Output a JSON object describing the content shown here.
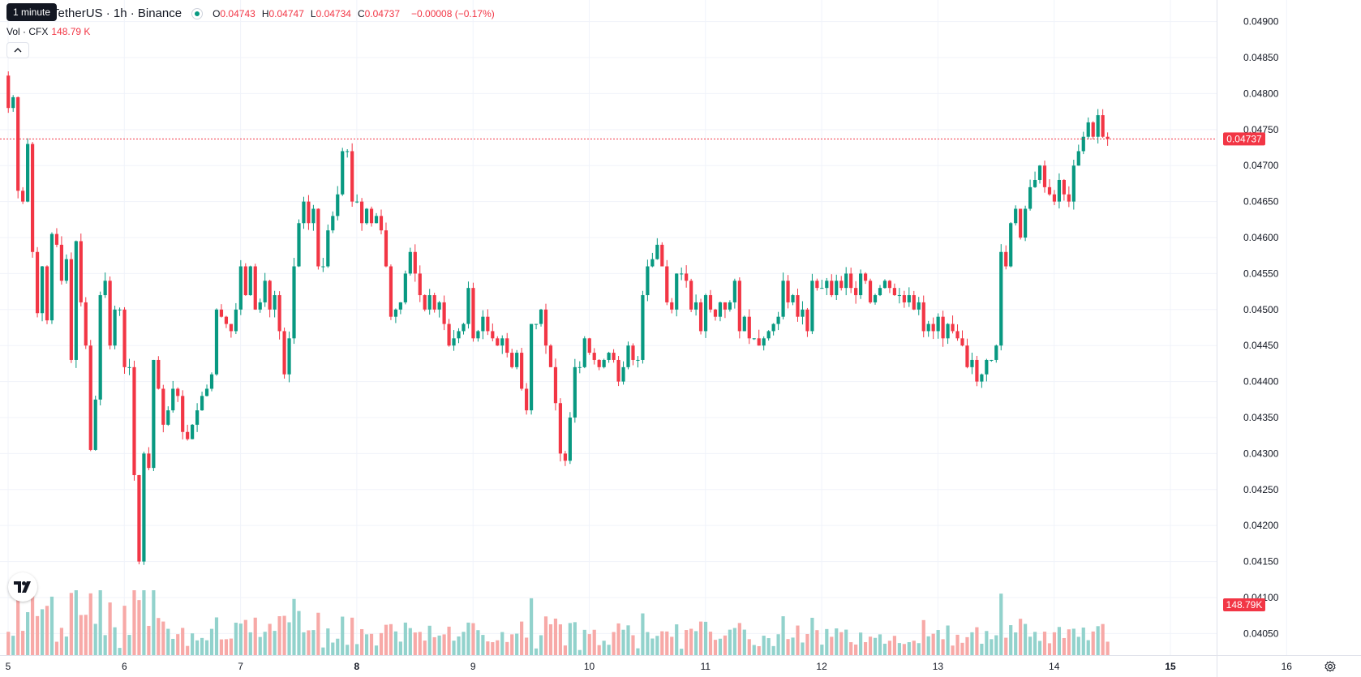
{
  "legend": {
    "tooltip": "1 minute",
    "title": "TetherUS · 1h · Binance",
    "open_label": "O",
    "open": "0.04743",
    "high_label": "H",
    "high": "0.04747",
    "low_label": "L",
    "low": "0.04734",
    "close_label": "C",
    "close": "0.04737",
    "change": "−0.00008 (−0.17%)",
    "vol_label": "Vol · CFX",
    "vol_value": "148.79 K"
  },
  "colors": {
    "up": "#089981",
    "down": "#f23645",
    "up_vol": "#92d2cc",
    "down_vol": "#f7a9a7",
    "grid": "#f0f3fa",
    "axis_text": "#131722"
  },
  "icons": {
    "collapse": "chevron-up-icon",
    "logo": "tradingview-logo-icon",
    "settings": "gear-icon"
  },
  "chart_data": {
    "type": "candlestick",
    "symbol": "TetherUS · 1h · Binance",
    "interval": "1h",
    "x_ticks": [
      "5",
      "6",
      "7",
      "8",
      "9",
      "10",
      "11",
      "12",
      "13",
      "14",
      "15",
      "16"
    ],
    "x_ticks_bold": [
      "8",
      "15"
    ],
    "y_ticks": [
      "0.04900",
      "0.04850",
      "0.04800",
      "0.04750",
      "0.04700",
      "0.04650",
      "0.04600",
      "0.04550",
      "0.04500",
      "0.04450",
      "0.04400",
      "0.04350",
      "0.04300",
      "0.04250",
      "0.04200",
      "0.04150",
      "0.04100",
      "0.04050"
    ],
    "ylim": [
      0.0402,
      0.0493
    ],
    "last_price": "0.04737",
    "last_volume": "148.79K",
    "candles_day_fraction": "24 candles per day, first candle ≈ day 4.96",
    "close_path": [
      [
        0,
        0.04825
      ],
      [
        1,
        0.0478
      ],
      [
        2,
        0.04795
      ],
      [
        3,
        0.04665
      ],
      [
        4,
        0.0465
      ],
      [
        5,
        0.0473
      ],
      [
        6,
        0.0458
      ],
      [
        7,
        0.04495
      ],
      [
        8,
        0.0456
      ],
      [
        9,
        0.04485
      ],
      [
        10,
        0.04605
      ],
      [
        11,
        0.0459
      ],
      [
        12,
        0.0454
      ],
      [
        13,
        0.0457
      ],
      [
        14,
        0.0443
      ],
      [
        15,
        0.04595
      ],
      [
        16,
        0.0451
      ],
      [
        17,
        0.0445
      ],
      [
        18,
        0.04305
      ],
      [
        19,
        0.04375
      ],
      [
        20,
        0.0452
      ],
      [
        21,
        0.0454
      ],
      [
        22,
        0.0445
      ],
      [
        23,
        0.045
      ],
      [
        24,
        0.045
      ],
      [
        25,
        0.0442
      ],
      [
        26,
        0.0442
      ],
      [
        27,
        0.0427
      ],
      [
        28,
        0.0415
      ],
      [
        29,
        0.043
      ],
      [
        30,
        0.0428
      ],
      [
        31,
        0.0443
      ],
      [
        32,
        0.0439
      ],
      [
        33,
        0.0434
      ],
      [
        34,
        0.0436
      ],
      [
        35,
        0.0439
      ],
      [
        36,
        0.0438
      ],
      [
        37,
        0.0433
      ],
      [
        38,
        0.0432
      ],
      [
        39,
        0.0434
      ],
      [
        40,
        0.0436
      ],
      [
        41,
        0.0438
      ],
      [
        42,
        0.0439
      ],
      [
        43,
        0.0441
      ],
      [
        44,
        0.045
      ],
      [
        45,
        0.0449
      ],
      [
        46,
        0.0448
      ],
      [
        47,
        0.0447
      ],
      [
        48,
        0.045
      ],
      [
        49,
        0.0456
      ],
      [
        50,
        0.0452
      ],
      [
        51,
        0.0456
      ],
      [
        52,
        0.045
      ],
      [
        53,
        0.0451
      ],
      [
        54,
        0.0454
      ],
      [
        55,
        0.045
      ],
      [
        56,
        0.0452
      ],
      [
        57,
        0.0447
      ],
      [
        58,
        0.0441
      ],
      [
        59,
        0.0446
      ],
      [
        60,
        0.0456
      ],
      [
        61,
        0.0462
      ],
      [
        62,
        0.0465
      ],
      [
        63,
        0.0462
      ],
      [
        64,
        0.0464
      ],
      [
        65,
        0.0456
      ],
      [
        66,
        0.0456
      ],
      [
        67,
        0.0461
      ],
      [
        68,
        0.0463
      ],
      [
        69,
        0.0466
      ],
      [
        70,
        0.0472
      ],
      [
        71,
        0.0472
      ],
      [
        72,
        0.0465
      ],
      [
        73,
        0.0465
      ],
      [
        74,
        0.0462
      ],
      [
        75,
        0.0464
      ],
      [
        76,
        0.0462
      ],
      [
        77,
        0.0463
      ],
      [
        78,
        0.0461
      ],
      [
        79,
        0.0456
      ],
      [
        80,
        0.0449
      ],
      [
        81,
        0.045
      ],
      [
        82,
        0.0451
      ],
      [
        83,
        0.0455
      ],
      [
        84,
        0.0458
      ],
      [
        85,
        0.0455
      ],
      [
        86,
        0.0452
      ],
      [
        87,
        0.045
      ],
      [
        88,
        0.0452
      ],
      [
        89,
        0.045
      ],
      [
        90,
        0.0451
      ],
      [
        91,
        0.0448
      ],
      [
        92,
        0.0445
      ],
      [
        93,
        0.0446
      ],
      [
        94,
        0.0447
      ],
      [
        95,
        0.0448
      ],
      [
        96,
        0.0453
      ],
      [
        97,
        0.0446
      ],
      [
        98,
        0.0447
      ],
      [
        99,
        0.0449
      ],
      [
        100,
        0.0447
      ],
      [
        101,
        0.0446
      ],
      [
        102,
        0.0445
      ],
      [
        103,
        0.0446
      ],
      [
        104,
        0.0444
      ],
      [
        105,
        0.0442
      ],
      [
        106,
        0.0444
      ],
      [
        107,
        0.0439
      ],
      [
        108,
        0.0436
      ],
      [
        109,
        0.0448
      ],
      [
        110,
        0.0448
      ],
      [
        111,
        0.045
      ],
      [
        112,
        0.0445
      ],
      [
        113,
        0.0442
      ],
      [
        114,
        0.0437
      ],
      [
        115,
        0.043
      ],
      [
        116,
        0.0429
      ],
      [
        117,
        0.0435
      ],
      [
        118,
        0.0442
      ],
      [
        119,
        0.0442
      ],
      [
        120,
        0.0446
      ],
      [
        121,
        0.0444
      ],
      [
        122,
        0.0443
      ],
      [
        123,
        0.0442
      ],
      [
        124,
        0.0443
      ],
      [
        125,
        0.0444
      ],
      [
        126,
        0.0443
      ],
      [
        127,
        0.044
      ],
      [
        128,
        0.0442
      ],
      [
        129,
        0.0445
      ],
      [
        130,
        0.0443
      ],
      [
        131,
        0.0443
      ],
      [
        132,
        0.0452
      ],
      [
        133,
        0.0456
      ],
      [
        134,
        0.0457
      ],
      [
        135,
        0.0459
      ],
      [
        136,
        0.0456
      ],
      [
        137,
        0.0451
      ],
      [
        138,
        0.045
      ],
      [
        139,
        0.0455
      ],
      [
        140,
        0.0455
      ],
      [
        141,
        0.0454
      ],
      [
        142,
        0.045
      ],
      [
        143,
        0.0451
      ],
      [
        144,
        0.0447
      ],
      [
        145,
        0.0452
      ],
      [
        146,
        0.045
      ],
      [
        147,
        0.0449
      ],
      [
        148,
        0.0451
      ],
      [
        149,
        0.045
      ],
      [
        150,
        0.0451
      ],
      [
        151,
        0.0454
      ],
      [
        152,
        0.0447
      ],
      [
        153,
        0.0449
      ],
      [
        154,
        0.0446
      ],
      [
        155,
        0.0446
      ],
      [
        156,
        0.0445
      ],
      [
        157,
        0.0446
      ],
      [
        158,
        0.0447
      ],
      [
        159,
        0.0448
      ],
      [
        160,
        0.0449
      ],
      [
        161,
        0.0454
      ],
      [
        162,
        0.0451
      ],
      [
        163,
        0.0452
      ],
      [
        164,
        0.0449
      ],
      [
        165,
        0.045
      ],
      [
        166,
        0.0447
      ],
      [
        167,
        0.0454
      ],
      [
        168,
        0.0453
      ],
      [
        169,
        0.0453
      ],
      [
        170,
        0.0454
      ],
      [
        171,
        0.0452
      ],
      [
        172,
        0.0454
      ],
      [
        173,
        0.0453
      ],
      [
        174,
        0.0455
      ],
      [
        175,
        0.0453
      ],
      [
        176,
        0.0452
      ],
      [
        177,
        0.0455
      ],
      [
        178,
        0.0454
      ],
      [
        179,
        0.0451
      ],
      [
        180,
        0.0452
      ],
      [
        181,
        0.0453
      ],
      [
        182,
        0.0454
      ],
      [
        183,
        0.0453
      ],
      [
        184,
        0.0452
      ],
      [
        185,
        0.0452
      ],
      [
        186,
        0.0451
      ],
      [
        187,
        0.0452
      ],
      [
        188,
        0.045
      ],
      [
        189,
        0.0451
      ],
      [
        190,
        0.0447
      ],
      [
        191,
        0.0448
      ],
      [
        192,
        0.0447
      ],
      [
        193,
        0.0449
      ],
      [
        194,
        0.0446
      ],
      [
        195,
        0.0448
      ],
      [
        196,
        0.0447
      ],
      [
        197,
        0.0446
      ],
      [
        198,
        0.0445
      ],
      [
        199,
        0.0442
      ],
      [
        200,
        0.0443
      ],
      [
        201,
        0.044
      ],
      [
        202,
        0.0441
      ],
      [
        203,
        0.0443
      ],
      [
        204,
        0.0443
      ],
      [
        205,
        0.0445
      ],
      [
        206,
        0.0458
      ],
      [
        207,
        0.0456
      ],
      [
        208,
        0.0462
      ],
      [
        209,
        0.0464
      ],
      [
        210,
        0.046
      ],
      [
        211,
        0.0464
      ],
      [
        212,
        0.0467
      ],
      [
        213,
        0.0468
      ],
      [
        214,
        0.047
      ],
      [
        215,
        0.0467
      ],
      [
        216,
        0.0466
      ],
      [
        217,
        0.0465
      ],
      [
        218,
        0.0468
      ],
      [
        219,
        0.0466
      ],
      [
        220,
        0.0465
      ],
      [
        221,
        0.047
      ],
      [
        222,
        0.0472
      ],
      [
        223,
        0.0474
      ],
      [
        224,
        0.0476
      ],
      [
        225,
        0.0474
      ],
      [
        226,
        0.0477
      ],
      [
        227,
        0.0474
      ],
      [
        228,
        0.04737
      ]
    ],
    "volume_label": "Vol · CFX"
  }
}
